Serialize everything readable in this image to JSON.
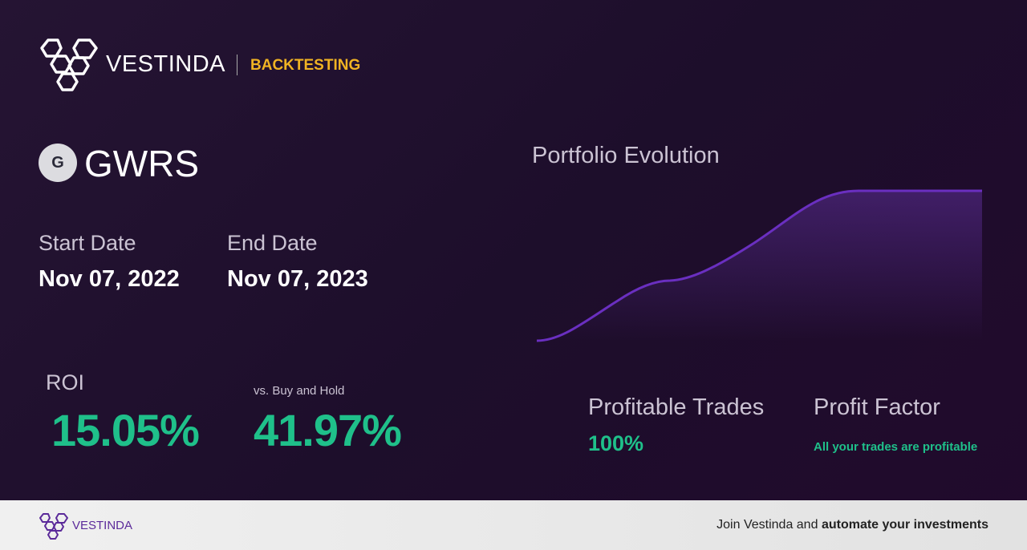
{
  "header": {
    "brand": "VESTINDA",
    "section": "BACKTESTING"
  },
  "asset": {
    "icon_letter": "G",
    "ticker": "GWRS"
  },
  "dates": {
    "start_label": "Start Date",
    "start_value": "Nov 07, 2022",
    "end_label": "End Date",
    "end_value": "Nov 07, 2023"
  },
  "roi": {
    "label": "ROI",
    "value": "15.05%",
    "compare_label": "vs. Buy and Hold",
    "compare_value": "41.97%"
  },
  "chart": {
    "title": "Portfolio Evolution"
  },
  "stats": {
    "profitable_trades_label": "Profitable Trades",
    "profitable_trades_value": "100%",
    "profit_factor_label": "Profit Factor",
    "profit_factor_value": "All your trades are profitable"
  },
  "footer": {
    "brand": "VESTINDA",
    "cta_plain": "Join Vestinda and",
    "cta_bold": "automate your investments"
  }
}
